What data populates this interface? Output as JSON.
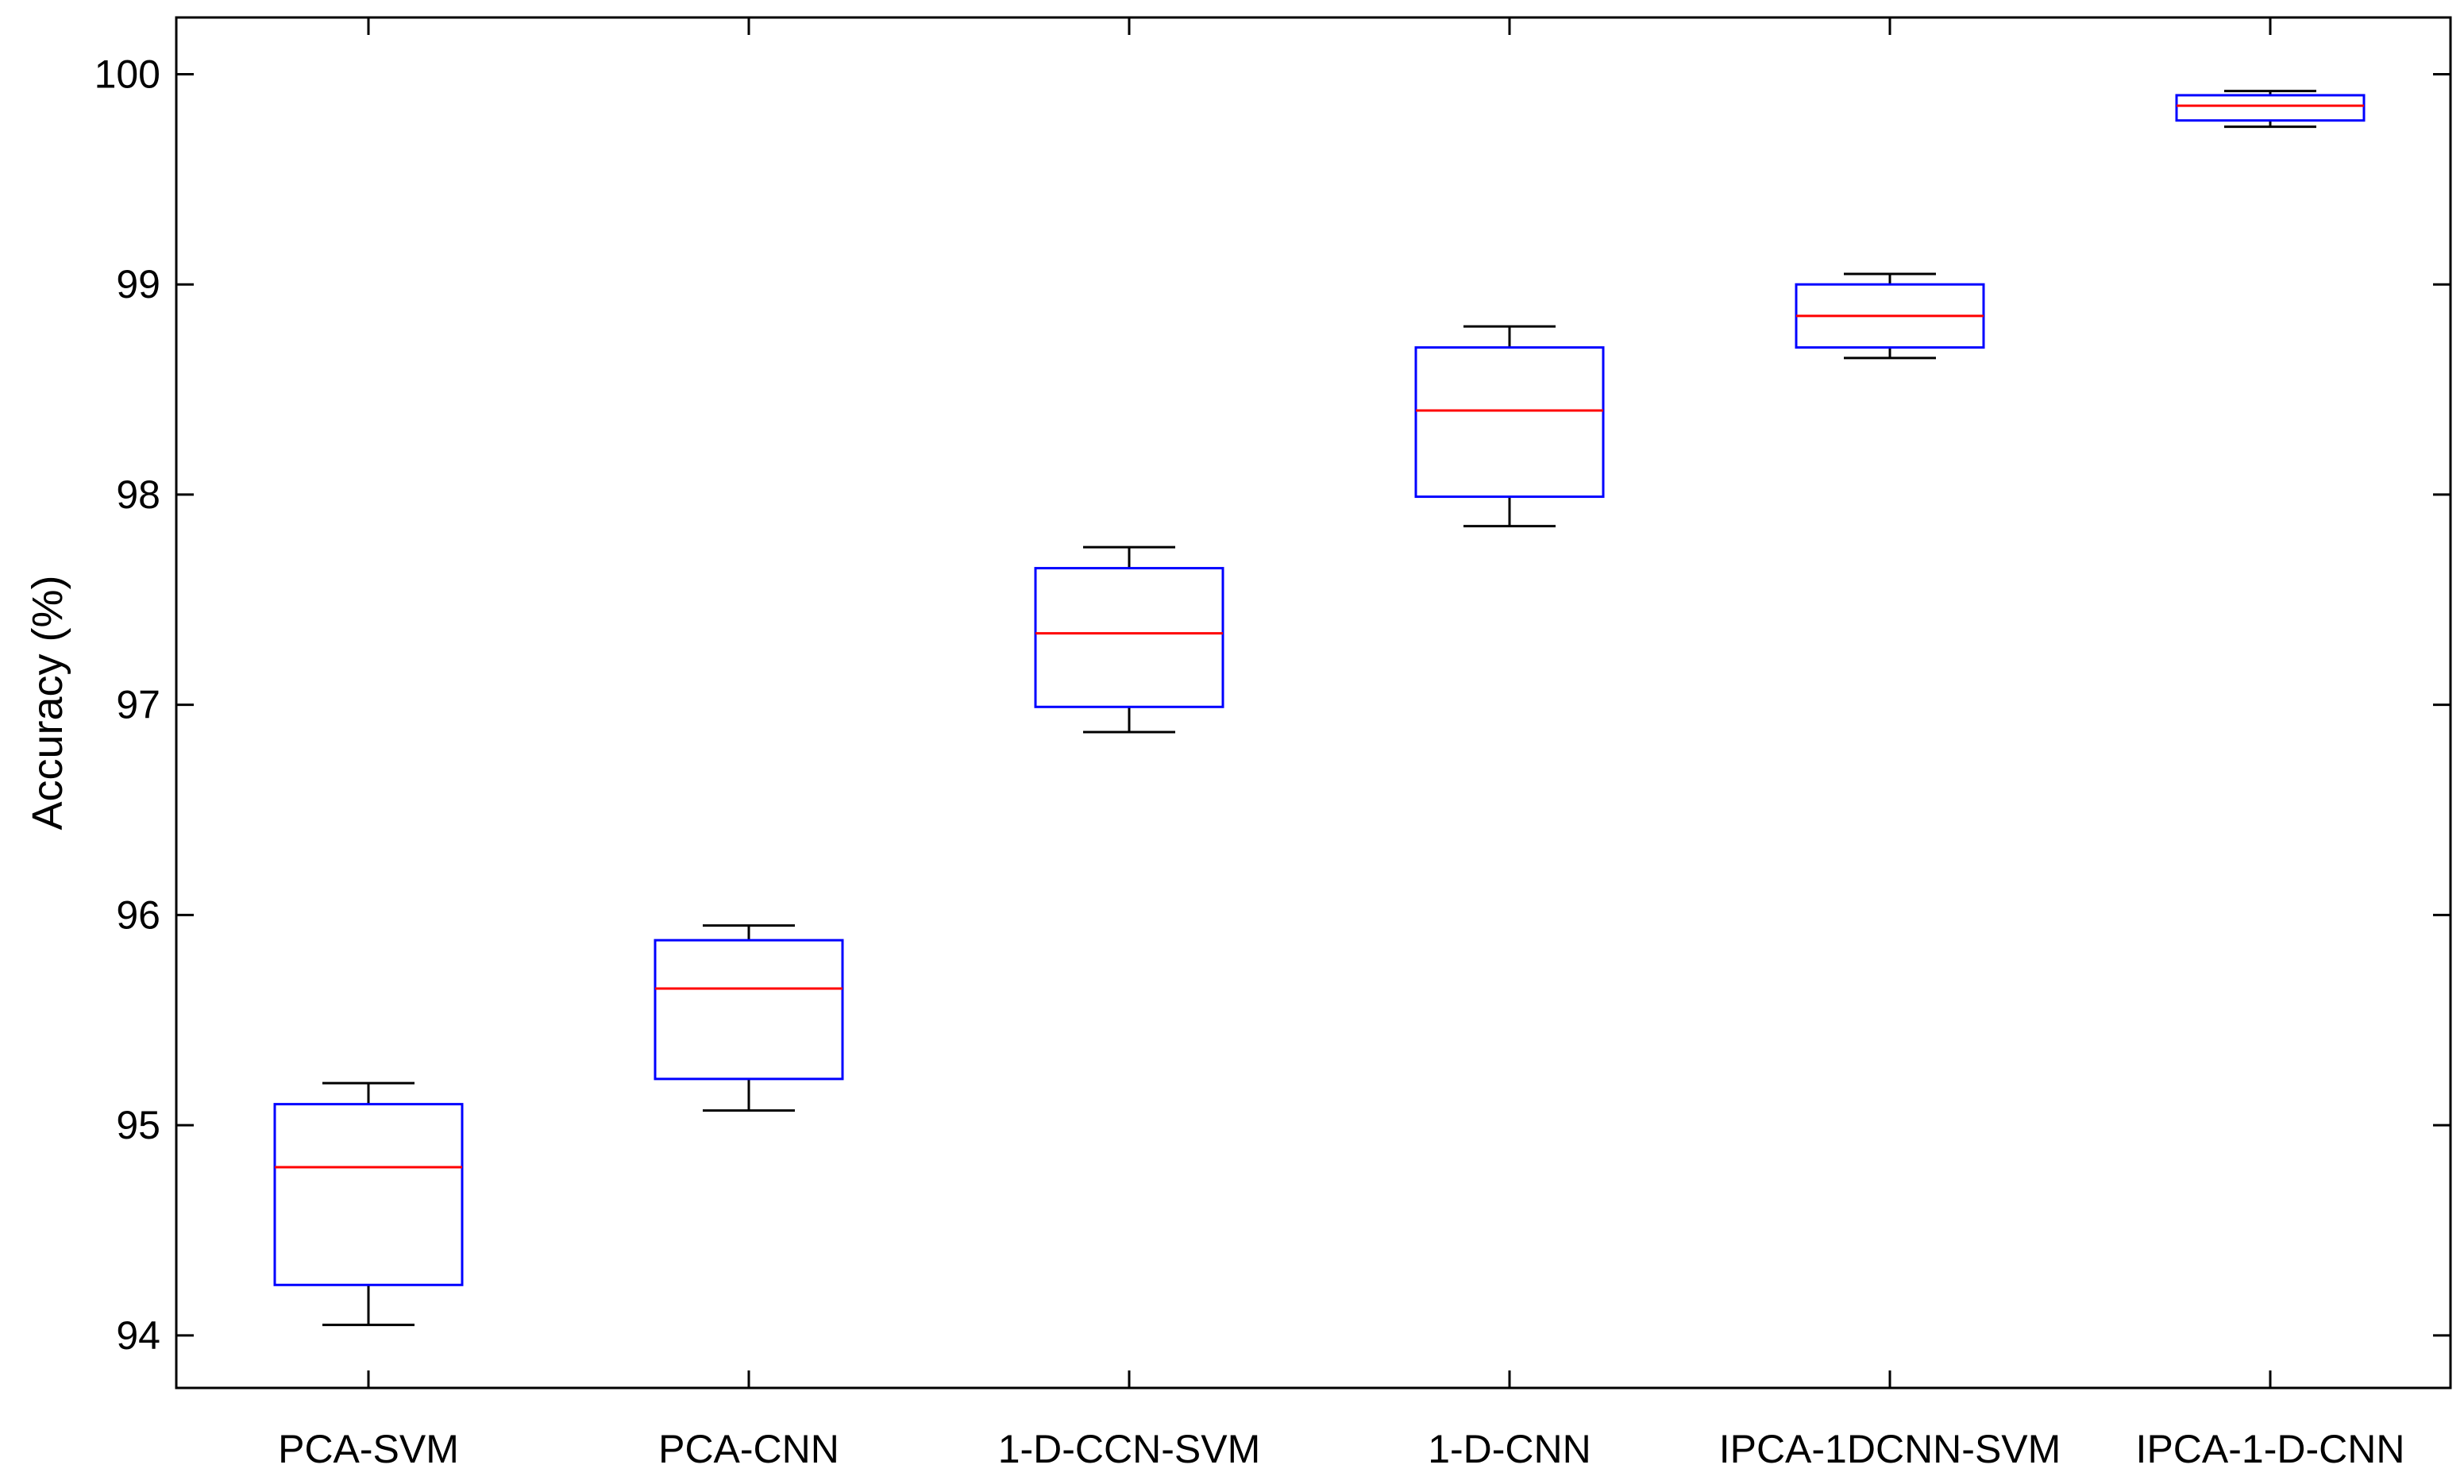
{
  "chart_data": {
    "type": "box",
    "title": "",
    "xlabel": "",
    "ylabel": "Accuracy (%)",
    "ylim": [
      93.75,
      100.27
    ],
    "yticks": [
      94,
      95,
      96,
      97,
      98,
      99,
      100
    ],
    "grid": false,
    "categories": [
      "PCA-SVM",
      "PCA-CNN",
      "1-D-CCN-SVM",
      "1-D-CNN",
      "IPCA-1DCNN-SVM",
      "IPCA-1-D-CNN"
    ],
    "boxes": [
      {
        "whisker_low": 94.05,
        "q1": 94.24,
        "median": 94.8,
        "q3": 95.1,
        "whisker_high": 95.2
      },
      {
        "whisker_low": 95.07,
        "q1": 95.22,
        "median": 95.65,
        "q3": 95.88,
        "whisker_high": 95.95
      },
      {
        "whisker_low": 96.87,
        "q1": 96.99,
        "median": 97.34,
        "q3": 97.65,
        "whisker_high": 97.75
      },
      {
        "whisker_low": 97.85,
        "q1": 97.99,
        "median": 98.4,
        "q3": 98.7,
        "whisker_high": 98.8
      },
      {
        "whisker_low": 98.65,
        "q1": 98.7,
        "median": 98.85,
        "q3": 99.0,
        "whisker_high": 99.05
      },
      {
        "whisker_low": 99.75,
        "q1": 99.78,
        "median": 99.85,
        "q3": 99.9,
        "whisker_high": 99.92
      }
    ],
    "colors": {
      "box": "#0000ff",
      "median": "#ff0000",
      "whisker": "#000000",
      "axis": "#000000"
    }
  }
}
